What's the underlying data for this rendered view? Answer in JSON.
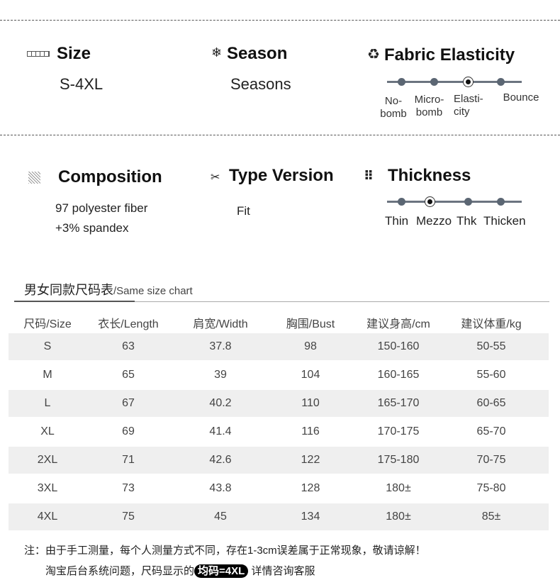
{
  "specs": {
    "size": {
      "title": "Size",
      "value": "S-4XL",
      "icon": "ruler-icon"
    },
    "season": {
      "title": "Season",
      "value": "Seasons",
      "icon": "snowflake-icon"
    },
    "elasticity": {
      "title": "Fabric Elasticity",
      "icon": "recycle-icon",
      "levels": [
        "No-\nbomb",
        "Micro-\nbomb",
        "Elasti-\ncity",
        "Bounce"
      ],
      "selected": "Elasti-\ncity"
    },
    "composition": {
      "title": "Composition",
      "line1": "97 polyester fiber",
      "line2": "+3% spandex",
      "icon": "hatched-square-icon"
    },
    "type": {
      "title": "Type Version",
      "value": "Fit",
      "icon": "scissors-icon"
    },
    "thickness": {
      "title": "Thickness",
      "icon": "grid-dots-icon",
      "levels": [
        "Thin",
        "Mezzo",
        "Thk",
        "Thicken"
      ],
      "selected": "Mezzo"
    }
  },
  "chart": {
    "title_cn": "男女同款尺码表",
    "title_en": "/Same size chart",
    "headers": [
      "尺码/Size",
      "衣长/Length",
      "肩宽/Width",
      "胸围/Bust",
      "建议身高/cm",
      "建议体重/kg"
    ],
    "rows": [
      [
        "S",
        "63",
        "37.8",
        "98",
        "150-160",
        "50-55"
      ],
      [
        "M",
        "65",
        "39",
        "104",
        "160-165",
        "55-60"
      ],
      [
        "L",
        "67",
        "40.2",
        "110",
        "165-170",
        "60-65"
      ],
      [
        "XL",
        "69",
        "41.4",
        "116",
        "170-175",
        "65-70"
      ],
      [
        "2XL",
        "71",
        "42.6",
        "122",
        "175-180",
        "70-75"
      ],
      [
        "3XL",
        "73",
        "43.8",
        "128",
        "180±",
        "75-80"
      ],
      [
        "4XL",
        "75",
        "45",
        "134",
        "180±",
        "85±"
      ]
    ]
  },
  "notes": {
    "line1": "注：由于手工测量，每个人测量方式不同，存在1-3cm误差属于正常现象，敬请谅解！",
    "line2_pre": "淘宝后台系统问题，尺码显示的",
    "line2_pill": "均码=4XL",
    "line2_post": " 详情咨询客服"
  }
}
